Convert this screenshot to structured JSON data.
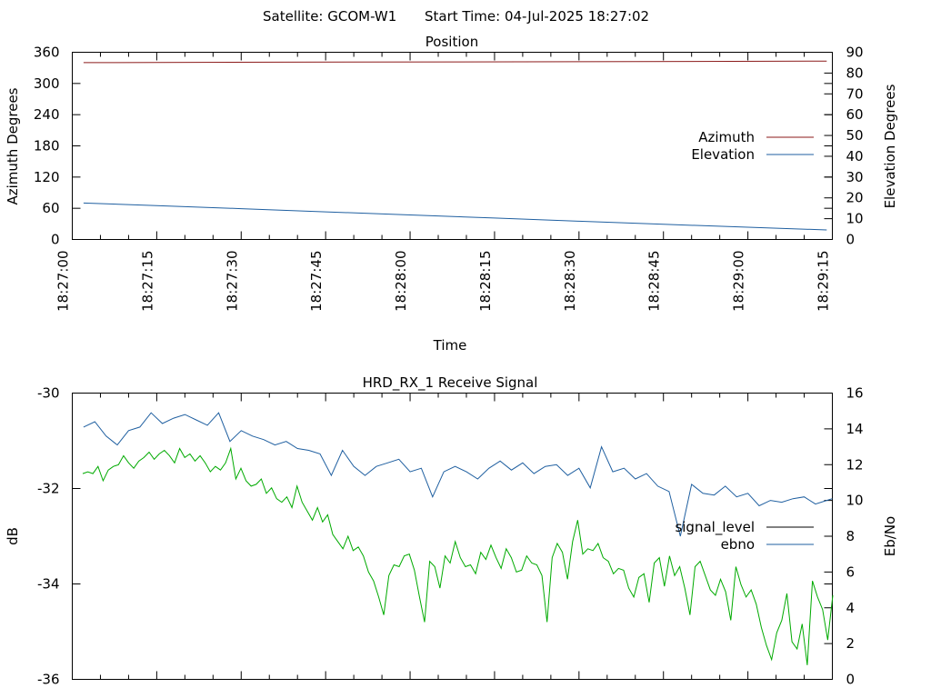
{
  "header": {
    "satellite": "Satellite: GCOM-W1",
    "start_time": "Start Time: 04-Jul-2025 18:27:02"
  },
  "colors": {
    "azimuth": "#8b1a1a",
    "elevation": "#1f5fa0",
    "signal_level": "#000000",
    "ebno_plot": "#1f5fa0",
    "green_trace": "#00aa00"
  },
  "chart_data": [
    {
      "type": "line",
      "title": "Position",
      "xlabel": "Time",
      "ylabel": "Azimuth Degrees",
      "y2label": "Elevation Degrees",
      "ylim": [
        0,
        360
      ],
      "yticks": [
        "0",
        "60",
        "120",
        "180",
        "240",
        "300",
        "360"
      ],
      "y2lim": [
        0,
        90
      ],
      "y2ticks": [
        "0",
        "10",
        "20",
        "30",
        "40",
        "50",
        "60",
        "70",
        "80",
        "90"
      ],
      "xlim": [
        "18:27:00",
        "18:29:15"
      ],
      "xticks": [
        "18:27:00",
        "18:27:15",
        "18:27:30",
        "18:27:45",
        "18:28:00",
        "18:28:15",
        "18:28:30",
        "18:28:45",
        "18:29:00",
        "18:29:15"
      ],
      "legend_position": "right",
      "series": [
        {
          "name": "Azimuth",
          "axis": "y",
          "x": [
            "18:27:02",
            "18:27:37",
            "18:28:40",
            "18:29:14"
          ],
          "values": [
            340,
            341,
            342,
            343
          ]
        },
        {
          "name": "Elevation",
          "axis": "y2",
          "x": [
            "18:27:02",
            "18:27:15",
            "18:27:30",
            "18:27:45",
            "18:28:00",
            "18:28:15",
            "18:28:30",
            "18:28:45",
            "18:29:00",
            "18:29:14"
          ],
          "values": [
            17.5,
            16.3,
            14.8,
            13.3,
            11.8,
            10.3,
            8.8,
            7.3,
            5.9,
            4.6
          ]
        }
      ]
    },
    {
      "type": "line",
      "title": "HRD_RX_1 Receive Signal",
      "ylabel": "dB",
      "y2label": "Eb/No",
      "ylim": [
        -36,
        -30
      ],
      "yticks": [
        "-36",
        "-34",
        "-32",
        "-30"
      ],
      "y2lim": [
        0,
        16
      ],
      "y2ticks": [
        "0",
        "2",
        "4",
        "6",
        "8",
        "10",
        "12",
        "14",
        "16"
      ],
      "xlim": [
        "18:27:00",
        "18:29:15"
      ],
      "legend_position": "right",
      "series": [
        {
          "name": "signal_level",
          "axis": "y",
          "x": [],
          "values": []
        },
        {
          "name": "ebno",
          "axis": "y2",
          "x": [
            "18:27:02",
            "18:27:04",
            "18:27:06",
            "18:27:08",
            "18:27:10",
            "18:27:12",
            "18:27:14",
            "18:27:16",
            "18:27:18",
            "18:27:20",
            "18:27:22",
            "18:27:24",
            "18:27:26",
            "18:27:28",
            "18:27:30",
            "18:27:32",
            "18:27:34",
            "18:27:36",
            "18:27:38",
            "18:27:40",
            "18:27:42",
            "18:27:44",
            "18:27:46",
            "18:27:48",
            "18:27:50",
            "18:27:52",
            "18:27:54",
            "18:27:56",
            "18:27:58",
            "18:28:00",
            "18:28:02",
            "18:28:04",
            "18:28:06",
            "18:28:08",
            "18:28:10",
            "18:28:12",
            "18:28:14",
            "18:28:16",
            "18:28:18",
            "18:28:20",
            "18:28:22",
            "18:28:24",
            "18:28:26",
            "18:28:28",
            "18:28:30",
            "18:28:32",
            "18:28:34",
            "18:28:36",
            "18:28:38",
            "18:28:40",
            "18:28:42",
            "18:28:44",
            "18:28:46",
            "18:28:48",
            "18:28:50",
            "18:28:52",
            "18:28:54",
            "18:28:56",
            "18:28:58",
            "18:29:00",
            "18:29:02",
            "18:29:04",
            "18:29:06",
            "18:29:08",
            "18:29:10",
            "18:29:12",
            "18:29:14",
            "18:29:15"
          ],
          "values": [
            14.1,
            14.4,
            13.6,
            13.1,
            13.9,
            14.1,
            14.9,
            14.3,
            14.6,
            14.8,
            14.5,
            14.2,
            14.9,
            13.3,
            13.9,
            13.6,
            13.4,
            13.1,
            13.3,
            12.9,
            12.8,
            12.6,
            11.4,
            12.8,
            11.9,
            11.4,
            11.9,
            12.1,
            12.3,
            11.6,
            11.8,
            10.2,
            11.6,
            11.9,
            11.6,
            11.2,
            11.8,
            12.2,
            11.7,
            12.1,
            11.5,
            11.9,
            12.0,
            11.4,
            11.8,
            10.7,
            13.0,
            11.6,
            11.8,
            11.2,
            11.5,
            10.8,
            10.5,
            8.0,
            10.9,
            10.4,
            10.3,
            10.8,
            10.2,
            10.4,
            9.7,
            10.0,
            9.9,
            10.1,
            10.2,
            9.8,
            10.0,
            10.1
          ]
        }
      ]
    }
  ]
}
